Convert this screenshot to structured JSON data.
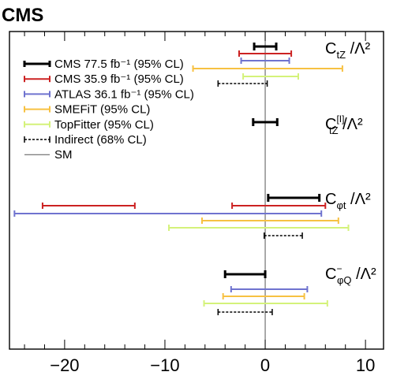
{
  "experiment_label": "CMS",
  "chart_data": {
    "type": "errorbar-intervals",
    "x_range": [
      -25.5,
      11.8
    ],
    "x_ticks": [
      -20,
      -10,
      0,
      10
    ],
    "x_tick_labels": [
      "−20",
      "−10",
      "0",
      "10"
    ],
    "xlabel": "",
    "ylabel": "",
    "grid": false,
    "legend_placement": "top-left",
    "reference_line": {
      "x": 0,
      "name": "SM"
    },
    "series": [
      {
        "key": "cms775",
        "name": "CMS 77.5 fb⁻¹ (95% CL)",
        "color": "#000000",
        "style": "solid-thick"
      },
      {
        "key": "cms359",
        "name": "CMS 35.9 fb⁻¹ (95% CL)",
        "color": "#cc2222",
        "style": "solid"
      },
      {
        "key": "atlas",
        "name": "ATLAS 36.1 fb⁻¹ (95% CL)",
        "color": "#6f73cf",
        "style": "solid"
      },
      {
        "key": "smefit",
        "name": "SMEFiT (95% CL)",
        "color": "#f7c142",
        "style": "solid"
      },
      {
        "key": "topfitter",
        "name": "TopFitter (95% CL)",
        "color": "#d4f27a",
        "style": "solid"
      },
      {
        "key": "indirect",
        "name": "Indirect (68% CL)",
        "color": "#000000",
        "style": "dashed"
      },
      {
        "key": "sm",
        "name": "SM",
        "color": "#555555",
        "style": "line"
      }
    ],
    "groups": [
      {
        "label_main": "C",
        "label_sub": "tZ",
        "label_sup": "",
        "label_tail": " /Λ²",
        "intervals": [
          {
            "series": "cms775",
            "segments": [
              [
                -1.1,
                1.1
              ]
            ]
          },
          {
            "series": "cms359",
            "segments": [
              [
                -2.6,
                2.6
              ]
            ]
          },
          {
            "series": "atlas",
            "segments": [
              [
                -2.4,
                2.4
              ]
            ]
          },
          {
            "series": "smefit",
            "segments": [
              [
                -7.2,
                7.7
              ]
            ]
          },
          {
            "series": "topfitter",
            "segments": [
              [
                -2.2,
                3.3
              ]
            ]
          },
          {
            "series": "indirect",
            "segments": [
              [
                -4.7,
                0.2
              ]
            ]
          }
        ]
      },
      {
        "label_main": "C",
        "label_sub": "tZ",
        "label_sup": "[I]",
        "label_tail": " /Λ²",
        "intervals": [
          {
            "series": "cms775",
            "segments": [
              [
                -1.2,
                1.2
              ]
            ]
          }
        ]
      },
      {
        "label_main": "C",
        "label_sub": "φt",
        "label_sup": "",
        "label_tail": " /Λ²",
        "intervals": [
          {
            "series": "cms775",
            "segments": [
              [
                0.3,
                5.4
              ]
            ]
          },
          {
            "series": "cms359",
            "segments": [
              [
                -22.2,
                -13.0
              ],
              [
                -3.3,
                6.0
              ]
            ]
          },
          {
            "series": "atlas",
            "segments": [
              [
                -25.0,
                5.6
              ]
            ]
          },
          {
            "series": "smefit",
            "segments": [
              [
                -6.3,
                7.3
              ]
            ]
          },
          {
            "series": "topfitter",
            "segments": [
              [
                -9.6,
                8.3
              ]
            ]
          },
          {
            "series": "indirect",
            "segments": [
              [
                -0.1,
                3.7
              ]
            ]
          }
        ]
      },
      {
        "label_main": "C",
        "label_sub": "φQ",
        "label_sup": "−",
        "label_tail": " /Λ²",
        "intervals": [
          {
            "series": "cms775",
            "segments": [
              [
                -4.0,
                0.0
              ]
            ]
          },
          {
            "series": "atlas",
            "segments": [
              [
                -3.4,
                4.2
              ]
            ]
          },
          {
            "series": "smefit",
            "segments": [
              [
                -4.2,
                3.9
              ]
            ]
          },
          {
            "series": "topfitter",
            "segments": [
              [
                -6.1,
                6.2
              ]
            ]
          },
          {
            "series": "indirect",
            "segments": [
              [
                -4.7,
                0.7
              ]
            ]
          }
        ]
      }
    ]
  }
}
